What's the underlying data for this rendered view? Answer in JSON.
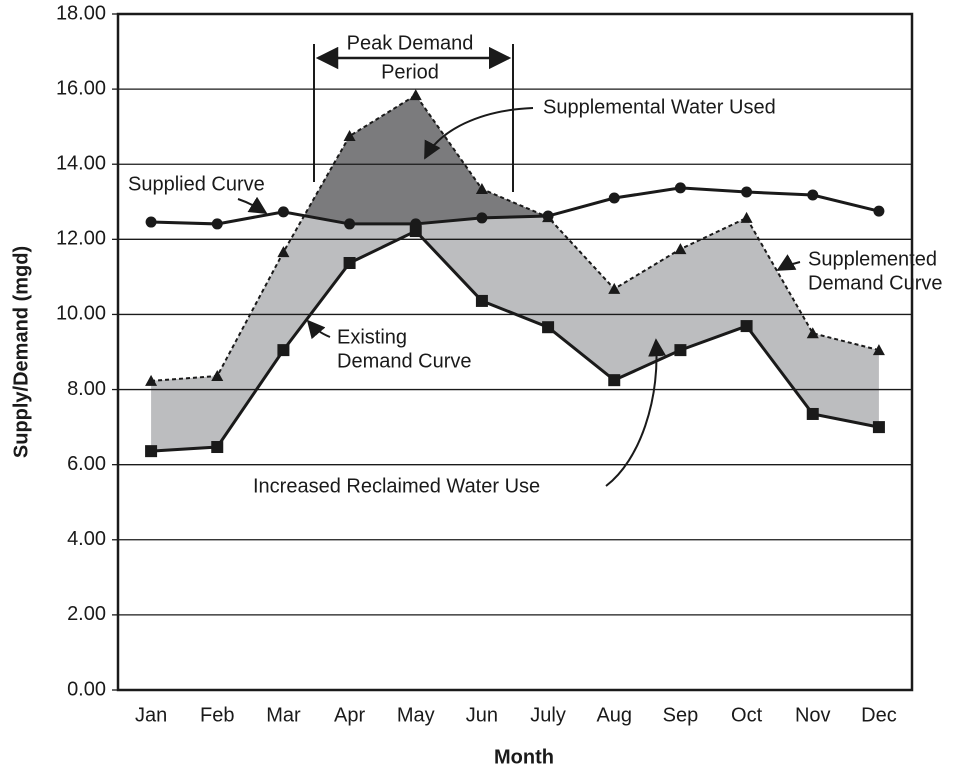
{
  "chart_data": {
    "type": "line",
    "x_label": "Month",
    "y_label": "Supply/Demand (mgd)",
    "categories": [
      "Jan",
      "Feb",
      "Mar",
      "Apr",
      "May",
      "Jun",
      "July",
      "Aug",
      "Sep",
      "Oct",
      "Nov",
      "Dec"
    ],
    "series": [
      {
        "color": "#1a1a1a",
        "marker": "circle",
        "dash": false,
        "values": [
          12.46,
          12.41,
          12.73,
          12.41,
          12.41,
          12.57,
          12.62,
          13.1,
          13.37,
          13.26,
          13.18,
          12.75
        ]
      },
      {
        "color": "#1a1a1a",
        "marker": "triangle",
        "dash": true,
        "values": [
          8.23,
          8.36,
          11.66,
          14.75,
          15.84,
          13.34,
          12.59,
          10.68,
          11.74,
          12.57,
          9.5,
          9.05
        ]
      },
      {
        "color": "#1a1a1a",
        "marker": "square",
        "dash": false,
        "values": [
          6.36,
          6.47,
          9.05,
          11.37,
          12.22,
          10.36,
          9.66,
          8.25,
          9.05,
          9.69,
          7.35,
          7.0
        ]
      }
    ],
    "fill_colors": {
      "increase": "#bcbdbf",
      "supplemental": "#7b7b7d"
    },
    "ylim": [
      0,
      18
    ],
    "yticks": [
      {
        "value": 0,
        "label": "0.00"
      },
      {
        "value": 2,
        "label": "2.00"
      },
      {
        "value": 4,
        "label": "4.00"
      },
      {
        "value": 6,
        "label": "6.00"
      },
      {
        "value": 8,
        "label": "8.00"
      },
      {
        "value": 10,
        "label": "10.00"
      },
      {
        "value": 12,
        "label": "12.00"
      },
      {
        "value": 14,
        "label": "14.00"
      },
      {
        "value": 16,
        "label": "16.00"
      },
      {
        "value": 18,
        "label": "18.00"
      }
    ],
    "grid": true,
    "annotations": [
      {
        "lines": [
          "Peak Demand",
          "Period"
        ]
      },
      {
        "lines": [
          "Supplemental Water Used"
        ]
      },
      {
        "lines": [
          "Supplied Curve"
        ]
      },
      {
        "lines": [
          "Existing",
          "Demand Curve"
        ]
      },
      {
        "lines": [
          "Supplemented",
          "Demand Curve"
        ]
      },
      {
        "lines": [
          "Increased Reclaimed Water Use"
        ]
      }
    ]
  }
}
